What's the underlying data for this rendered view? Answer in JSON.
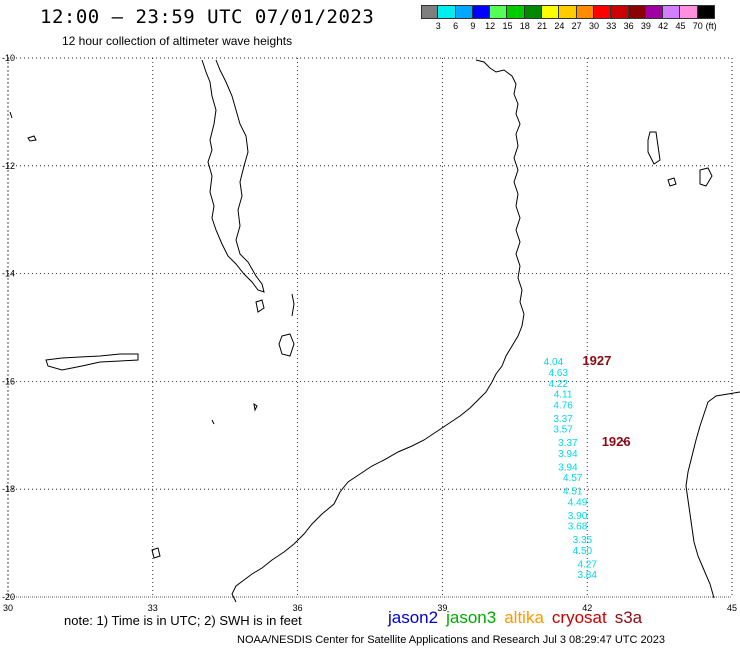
{
  "header": {
    "title": "12:00 – 23:59 UTC 07/01/2023",
    "subtitle": "12 hour collection of altimeter wave heights"
  },
  "color_scale": {
    "unit": "(ft)",
    "ticks": [
      {
        "value": "3",
        "color": "#7f7f7f"
      },
      {
        "value": "6",
        "color": "#00eeee"
      },
      {
        "value": "9",
        "color": "#00a8ff"
      },
      {
        "value": "12",
        "color": "#0000ff"
      },
      {
        "value": "15",
        "color": "#55ff55"
      },
      {
        "value": "18",
        "color": "#00cc00"
      },
      {
        "value": "21",
        "color": "#008800"
      },
      {
        "value": "24",
        "color": "#ffff00"
      },
      {
        "value": "27",
        "color": "#ffcc00"
      },
      {
        "value": "30",
        "color": "#ff8c00"
      },
      {
        "value": "33",
        "color": "#ff0000"
      },
      {
        "value": "36",
        "color": "#cc0000"
      },
      {
        "value": "39",
        "color": "#8b0000"
      },
      {
        "value": "42",
        "color": "#a000a0"
      },
      {
        "value": "45",
        "color": "#d080ff"
      },
      {
        "value": "70",
        "color": "#ff90e0"
      },
      {
        "value": "",
        "color": "#000000"
      }
    ]
  },
  "map": {
    "lon_range": [
      30,
      45
    ],
    "lat_range": [
      -20,
      -10
    ],
    "grid": true,
    "lon_labels": [
      "30",
      "33",
      "36",
      "39",
      "42",
      "45"
    ],
    "lat_labels": [
      "-10",
      "-12",
      "-14",
      "-16",
      "-18",
      "-20"
    ]
  },
  "observations": [
    {
      "lon": 41.3,
      "lat": -15.7,
      "swh": "4.04"
    },
    {
      "lon": 41.4,
      "lat": -15.9,
      "swh": "4.63"
    },
    {
      "lon": 41.4,
      "lat": -16.1,
      "swh": "4.22"
    },
    {
      "lon": 41.5,
      "lat": -16.3,
      "swh": "4.11"
    },
    {
      "lon": 41.5,
      "lat": -16.5,
      "swh": "4.76"
    },
    {
      "lon": 41.5,
      "lat": -16.75,
      "swh": "3.37"
    },
    {
      "lon": 41.5,
      "lat": -16.95,
      "swh": "3.57"
    },
    {
      "lon": 41.6,
      "lat": -17.2,
      "swh": "3.37"
    },
    {
      "lon": 41.6,
      "lat": -17.4,
      "swh": "3.94"
    },
    {
      "lon": 41.6,
      "lat": -17.65,
      "swh": "3.94"
    },
    {
      "lon": 41.7,
      "lat": -17.85,
      "swh": "4.57"
    },
    {
      "lon": 41.7,
      "lat": -18.1,
      "swh": "4.51"
    },
    {
      "lon": 41.8,
      "lat": -18.3,
      "swh": "4.49"
    },
    {
      "lon": 41.8,
      "lat": -18.55,
      "swh": "3.90"
    },
    {
      "lon": 41.8,
      "lat": -18.75,
      "swh": "3.68"
    },
    {
      "lon": 41.9,
      "lat": -19.0,
      "swh": "3.35"
    },
    {
      "lon": 41.9,
      "lat": -19.2,
      "swh": "4.50"
    },
    {
      "lon": 42.0,
      "lat": -19.45,
      "swh": "4.27"
    },
    {
      "lon": 42.0,
      "lat": -19.65,
      "swh": "3.84"
    }
  ],
  "passes": [
    {
      "label": "1927",
      "lon": 42.2,
      "lat": -15.7
    },
    {
      "label": "1926",
      "lon": 42.6,
      "lat": -17.2
    }
  ],
  "footer": {
    "note": "note: 1) Time is in UTC; 2) SWH is in feet",
    "satellites": [
      {
        "name": "jason2",
        "color": "#0000cc"
      },
      {
        "name": "jason3",
        "color": "#00aa00"
      },
      {
        "name": "altika",
        "color": "#ff9900"
      },
      {
        "name": "cryosat",
        "color": "#cc0000"
      },
      {
        "name": "s3a",
        "color": "#8b0a14"
      }
    ],
    "credit": "NOAA/NESDIS Center for Satellite Applications and Research    Jul  3 08:29:47 UTC 2023"
  }
}
